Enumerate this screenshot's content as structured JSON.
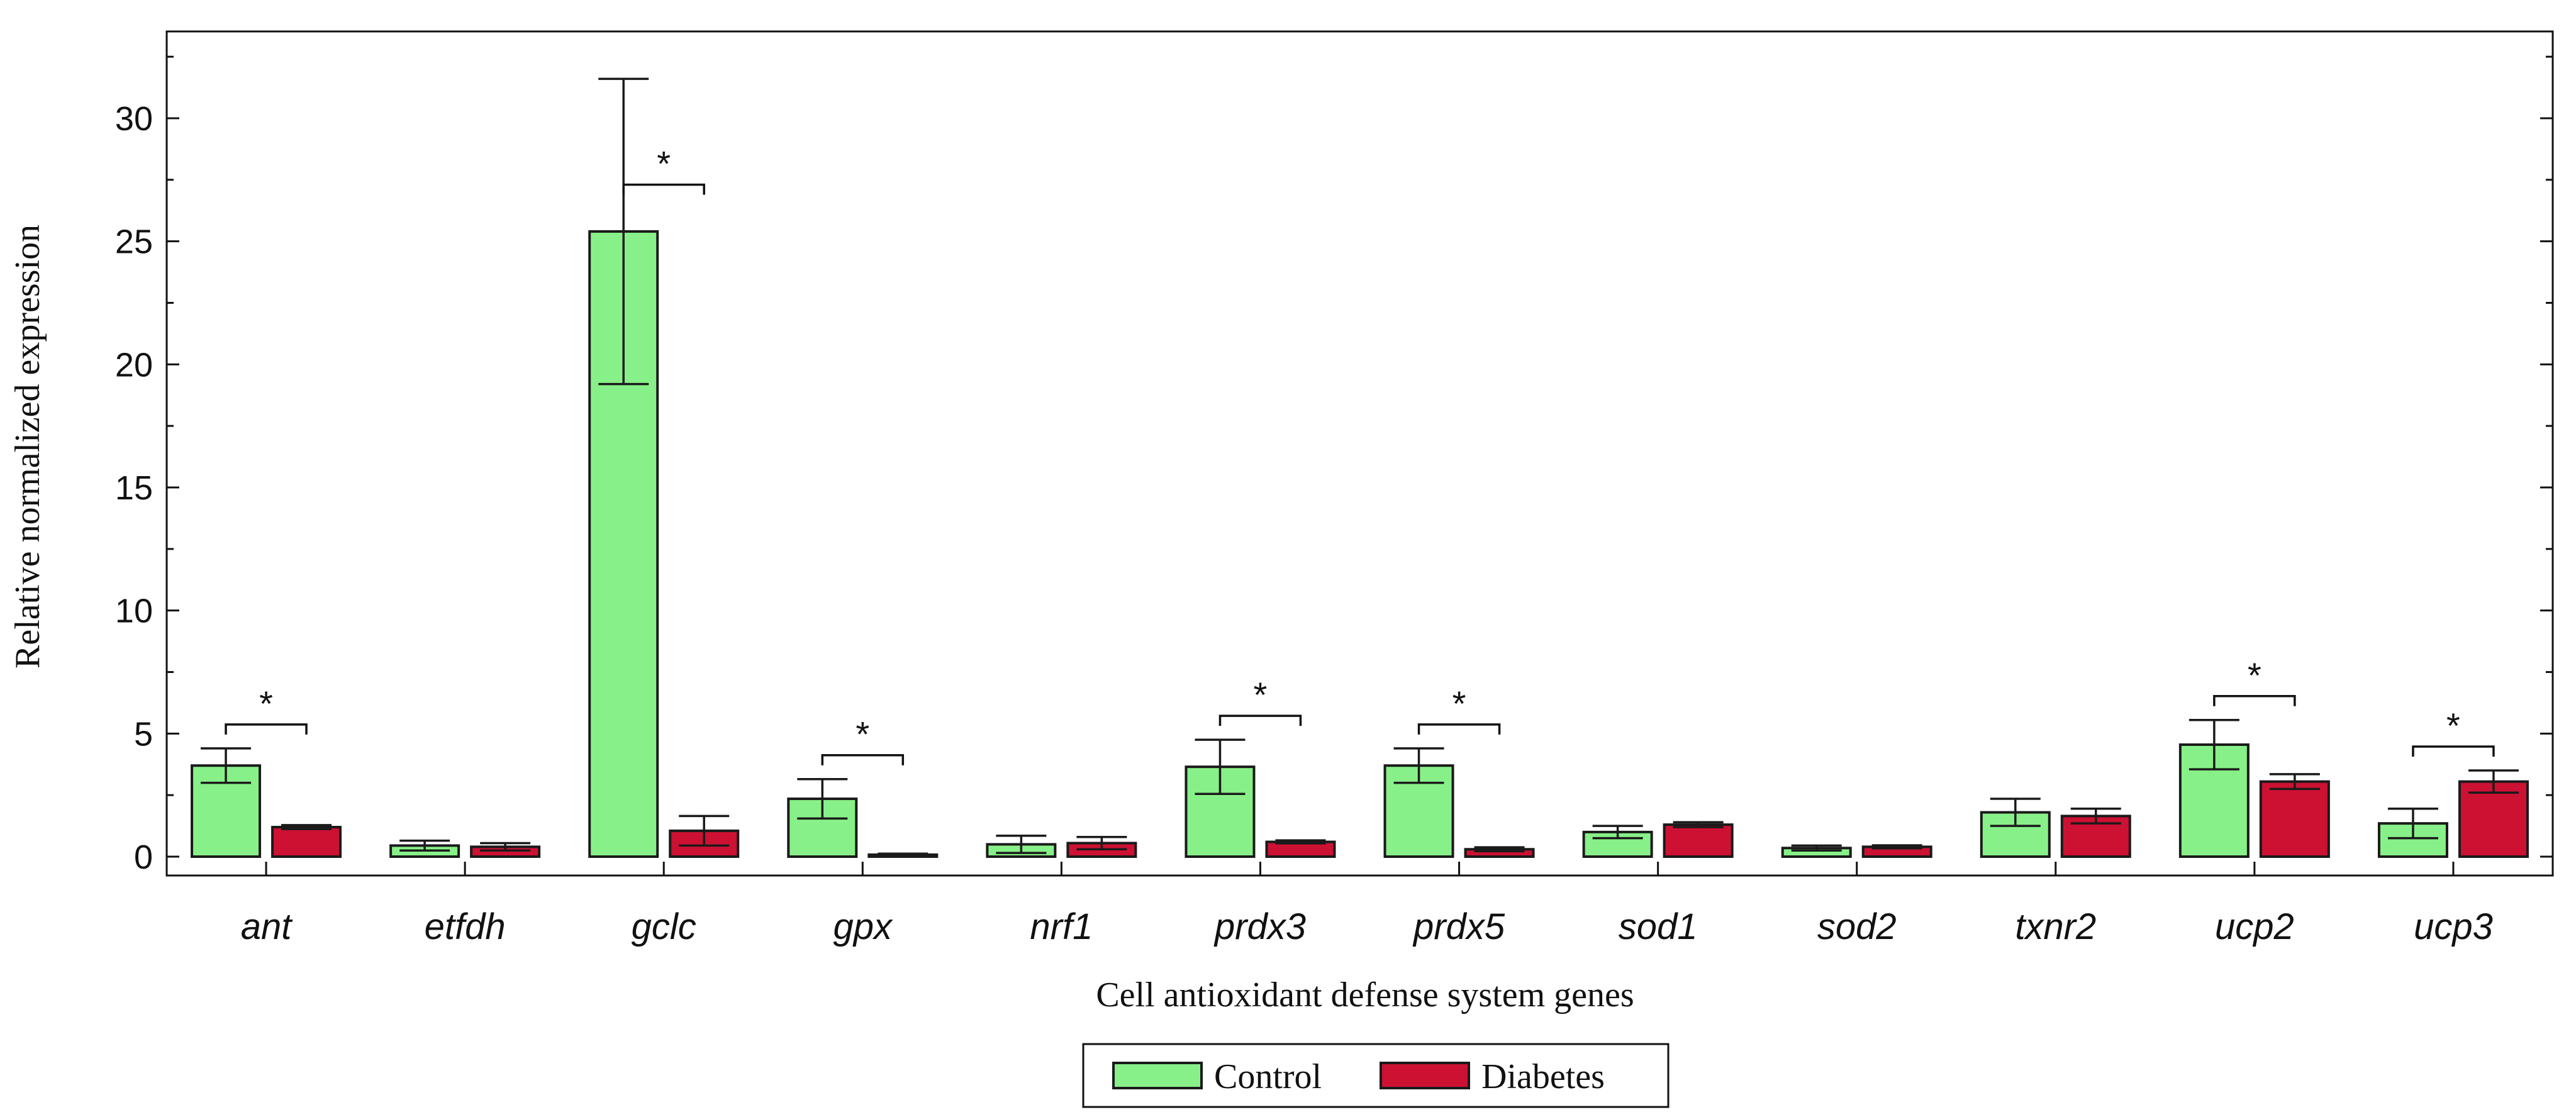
{
  "chart_data": {
    "type": "bar",
    "title": "",
    "xlabel": "Cell antioxidant defense system genes",
    "ylabel": "Relative normalized expression",
    "ylim": [
      0,
      33
    ],
    "yticks": [
      0,
      5,
      10,
      15,
      20,
      25,
      30
    ],
    "grid": false,
    "legend_position": "bottom-center",
    "categories": [
      "ant",
      "etfdh",
      "gclc",
      "gpx",
      "nrf1",
      "prdx3",
      "prdx5",
      "sod1",
      "sod2",
      "txnr2",
      "ucp2",
      "ucp3"
    ],
    "series": [
      {
        "name": "Control",
        "color": "#88f088",
        "values": [
          3.7,
          0.45,
          25.4,
          2.35,
          0.5,
          3.65,
          3.7,
          1.0,
          0.35,
          1.8,
          4.55,
          1.35
        ],
        "errors": [
          0.7,
          0.2,
          6.2,
          0.8,
          0.35,
          1.1,
          0.7,
          0.25,
          0.1,
          0.55,
          1.0,
          0.6
        ]
      },
      {
        "name": "Diabetes",
        "color": "#cc1133",
        "values": [
          1.2,
          0.4,
          1.05,
          0.08,
          0.55,
          0.6,
          0.3,
          1.3,
          0.4,
          1.65,
          3.05,
          3.05
        ],
        "errors": [
          0.08,
          0.15,
          0.6,
          0.04,
          0.25,
          0.06,
          0.08,
          0.1,
          0.06,
          0.3,
          0.3,
          0.45
        ]
      }
    ],
    "significance": [
      {
        "category": "ant",
        "label": "*"
      },
      {
        "category": "gclc",
        "label": "*"
      },
      {
        "category": "gpx",
        "label": "*"
      },
      {
        "category": "prdx3",
        "label": "*"
      },
      {
        "category": "prdx5",
        "label": "*"
      },
      {
        "category": "ucp2",
        "label": "*"
      },
      {
        "category": "ucp3",
        "label": "*"
      }
    ]
  }
}
